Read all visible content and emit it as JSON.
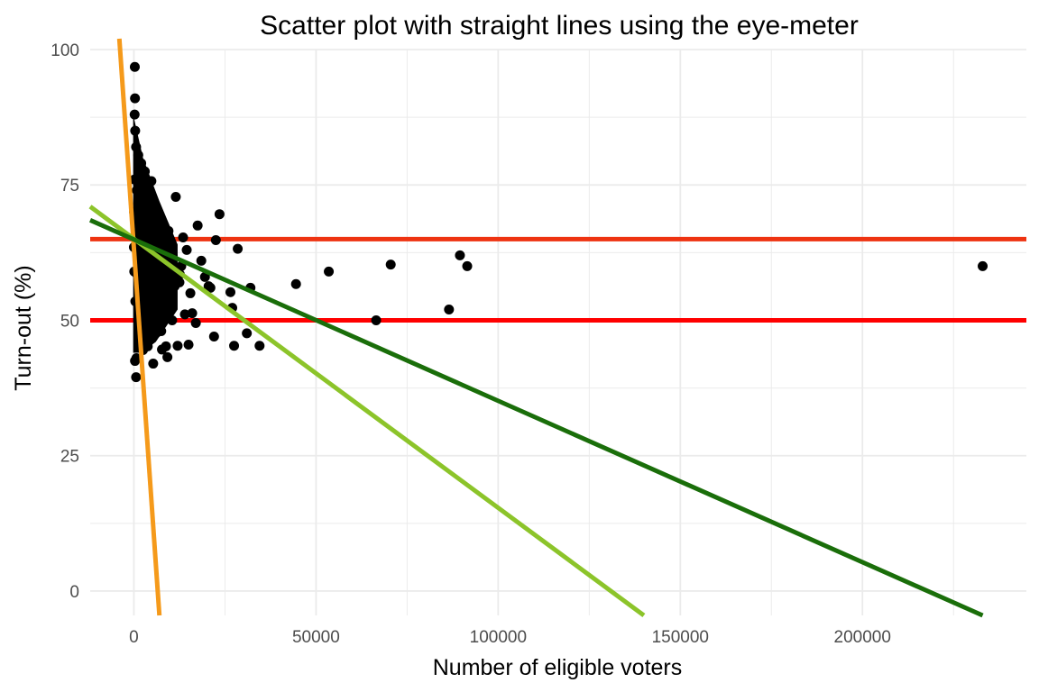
{
  "chart_data": {
    "type": "scatter",
    "title": "Scatter plot with straight lines using the eye-meter",
    "xlabel": "Number of eligible voters",
    "ylabel": "Turn-out (%)",
    "xlim": [
      -12000,
      245000
    ],
    "ylim": [
      -4.5,
      100
    ],
    "x_ticks": [
      0,
      50000,
      100000,
      150000,
      200000
    ],
    "x_tick_labels": [
      "0",
      "50000",
      "100000",
      "150000",
      "200000"
    ],
    "y_ticks": [
      0,
      25,
      50,
      75,
      100
    ],
    "y_tick_labels": [
      "0",
      "25",
      "50",
      "75",
      "100"
    ],
    "grid": true,
    "colors": {
      "points": "#000000",
      "hline": "#ff0000",
      "hline_upper": "#ee3311",
      "orange_line": "#f59a1b",
      "light_green_line": "#8cc42a",
      "dark_green_line": "#1a6e0a",
      "grid": "#ebebeb"
    },
    "lines": [
      {
        "kind": "horizontal",
        "y": 65,
        "color": "#ee3311"
      },
      {
        "kind": "horizontal",
        "y": 50,
        "color": "#ff0000"
      },
      {
        "kind": "segment",
        "x": [
          -4000,
          7000
        ],
        "y": [
          102,
          -4.5
        ],
        "color": "#f59a1b"
      },
      {
        "kind": "segment",
        "x": [
          -12000,
          140000
        ],
        "y": [
          71,
          -4.5
        ],
        "color": "#8cc42a"
      },
      {
        "kind": "segment",
        "x": [
          -12000,
          233000
        ],
        "y": [
          68.5,
          -4.5
        ],
        "color": "#1a6e0a"
      }
    ],
    "points": [
      [
        233000,
        60
      ],
      [
        91500,
        60
      ],
      [
        89500,
        62
      ],
      [
        86500,
        52
      ],
      [
        70500,
        60.3
      ],
      [
        66500,
        50
      ],
      [
        53500,
        59
      ],
      [
        44500,
        56.7
      ],
      [
        34500,
        45.3
      ],
      [
        32000,
        56
      ],
      [
        31000,
        47.6
      ],
      [
        28500,
        63.2
      ],
      [
        27500,
        45.3
      ],
      [
        27000,
        52.3
      ],
      [
        26500,
        55.2
      ],
      [
        23500,
        69.6
      ],
      [
        22500,
        64.8
      ],
      [
        22000,
        47
      ],
      [
        21000,
        56
      ],
      [
        20500,
        56.3
      ],
      [
        19500,
        58
      ],
      [
        18500,
        61
      ],
      [
        17500,
        67.5
      ],
      [
        17000,
        49.5
      ],
      [
        16000,
        51.3
      ],
      [
        15500,
        55
      ],
      [
        15000,
        45.5
      ],
      [
        14500,
        63
      ],
      [
        14000,
        51.1
      ],
      [
        13500,
        65.3
      ],
      [
        13000,
        60
      ],
      [
        12500,
        57
      ],
      [
        12000,
        45.3
      ],
      [
        11500,
        72.8
      ],
      [
        11200,
        56.3
      ],
      [
        10500,
        50
      ],
      [
        10000,
        59
      ],
      [
        9500,
        66.5
      ],
      [
        9200,
        43.2
      ],
      [
        9000,
        58
      ],
      [
        8800,
        45.2
      ],
      [
        8500,
        52
      ],
      [
        8000,
        62.5
      ],
      [
        7700,
        44.6
      ],
      [
        7500,
        48
      ],
      [
        7000,
        69.5
      ],
      [
        6800,
        55.5
      ],
      [
        6500,
        60.2
      ],
      [
        6200,
        47.7
      ],
      [
        6000,
        66
      ],
      [
        5800,
        53
      ],
      [
        5500,
        71.5
      ],
      [
        5300,
        42
      ],
      [
        5000,
        59
      ],
      [
        4800,
        75.7
      ],
      [
        4500,
        49.5
      ],
      [
        4300,
        63
      ],
      [
        4000,
        56.5
      ],
      [
        3800,
        45.2
      ],
      [
        3500,
        68
      ],
      [
        3300,
        52.5
      ],
      [
        3000,
        77.5
      ],
      [
        2800,
        60
      ],
      [
        2500,
        44.5
      ],
      [
        2300,
        66.8
      ],
      [
        2000,
        79
      ],
      [
        1800,
        55
      ],
      [
        1600,
        72
      ],
      [
        1400,
        48.5
      ],
      [
        1200,
        80.5
      ],
      [
        1000,
        62
      ],
      [
        900,
        58.5
      ],
      [
        800,
        74
      ],
      [
        700,
        43
      ],
      [
        600,
        82
      ],
      [
        500,
        67
      ],
      [
        400,
        53.5
      ],
      [
        350,
        85
      ],
      [
        300,
        91
      ],
      [
        250,
        96.8
      ],
      [
        200,
        88
      ],
      [
        150,
        76
      ],
      [
        100,
        59
      ],
      [
        50,
        70
      ],
      [
        0,
        63.5
      ],
      [
        600,
        39.5
      ],
      [
        300,
        42.5
      ],
      [
        1500,
        65
      ],
      [
        2600,
        70
      ],
      [
        3600,
        61.5
      ],
      [
        4600,
        67
      ],
      [
        5600,
        57.5
      ],
      [
        6600,
        63.5
      ],
      [
        7600,
        54
      ],
      [
        8600,
        61
      ],
      [
        9600,
        56.3
      ],
      [
        10600,
        62
      ],
      [
        12600,
        58.5
      ]
    ]
  }
}
